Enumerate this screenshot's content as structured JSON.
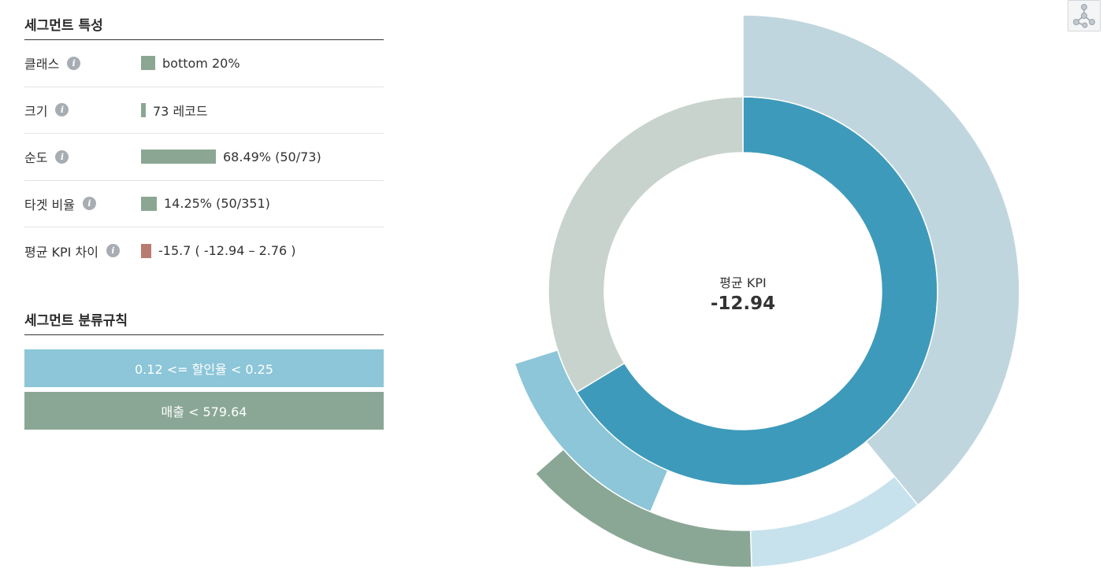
{
  "features": {
    "title": "세그먼트 특성",
    "rows": [
      {
        "label": "클래스",
        "value": "bottom 20%",
        "bar_fraction": 0.04
      },
      {
        "label": "크기",
        "value": "73 레코드",
        "bar_fraction": 0.015
      },
      {
        "label": "순도",
        "value": "68.49% (50/73)",
        "bar_fraction": 0.2
      },
      {
        "label": "타겟 비율",
        "value": "14.25% (50/351)",
        "bar_fraction": 0.043
      },
      {
        "label": "평균 KPI 차이",
        "value": "-15.7 ( -12.94 – 2.76 )",
        "bar_fraction": 0.029
      }
    ]
  },
  "rules": {
    "title": "세그먼트 분류규칙",
    "items": [
      "0.12 <= 할인율 < 0.25",
      "매출 < 579.64"
    ]
  },
  "chart": {
    "center_label": "평균 KPI",
    "center_value": "-12.94",
    "inner_ring": {
      "highlight_fraction": 0.663,
      "highlight_color": "#3e9aba",
      "rest_color": "#c9d3cd"
    },
    "middle_ring": {
      "start_fraction": 0.563,
      "end_fraction": 0.701,
      "color": "#8cc6d8"
    },
    "outer_ring": [
      {
        "start_fraction": 0.0,
        "end_fraction": 0.391,
        "color": "#c0d6de"
      },
      {
        "start_fraction": 0.391,
        "end_fraction": 0.495,
        "color": "#c7e2ec"
      },
      {
        "start_fraction": 0.495,
        "end_fraction": 0.635,
        "color": "#8aa795"
      }
    ]
  },
  "colors": {
    "positive_bar": "#8ba794",
    "negative_bar": "#b87b6f"
  }
}
